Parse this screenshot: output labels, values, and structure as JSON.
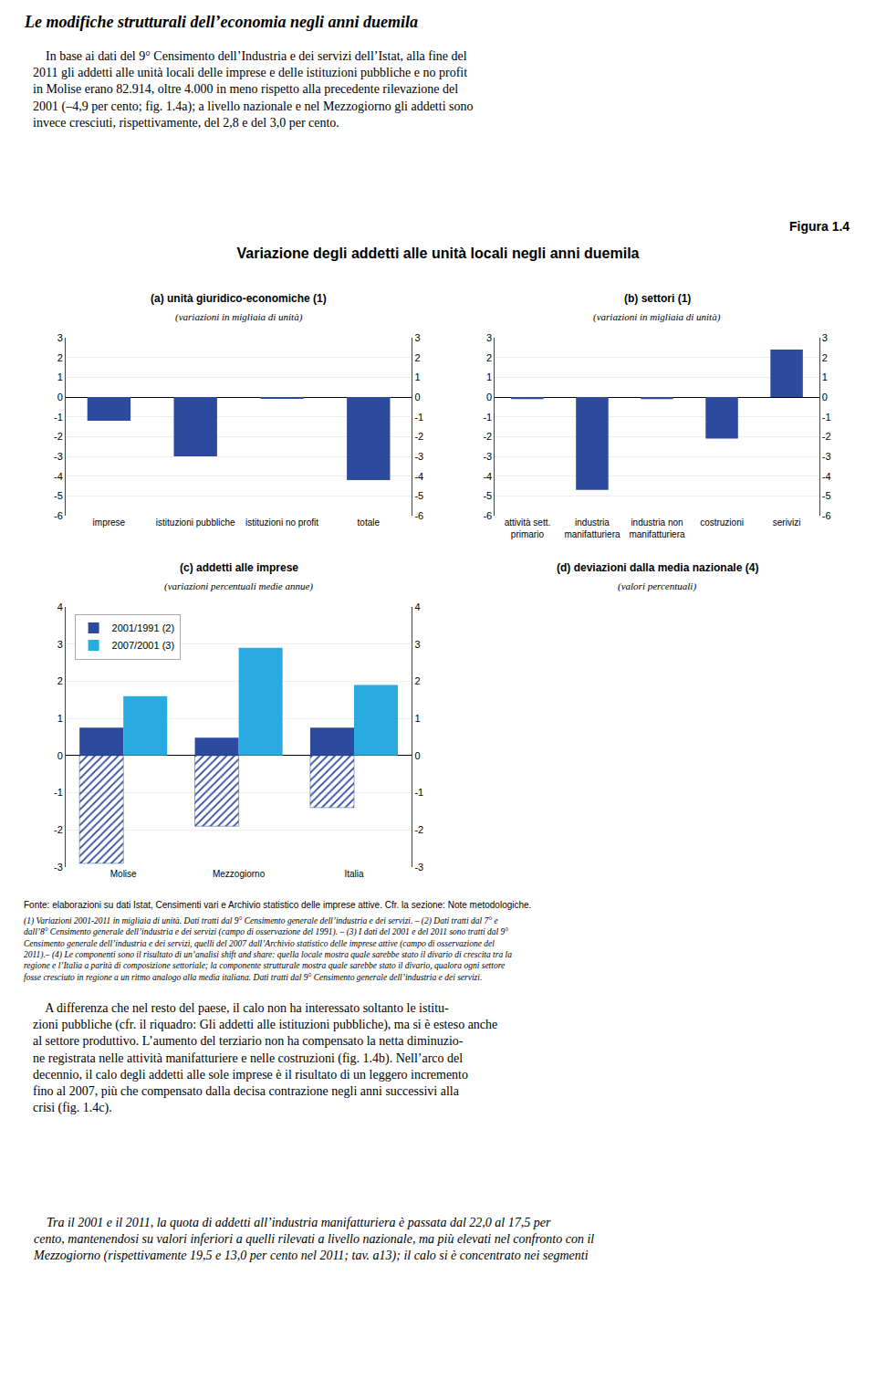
{
  "title": "Variazione degli addetti alle unità locali negli anni duemila",
  "annotations": [
    "Le modifiche strutturali dell’economia negli anni duemila",
    "    In base ai dati del 9° Censimento dell’Industria e dei servizi dell’Istat, alla fine del\n2011 gli addetti alle unità locali delle imprese e delle istituzioni pubbliche e no profit\nin Molise erano 82.914, oltre 4.000 in meno rispetto alla precedente rilevazione del\n2001 (–4,9 per cento; fig. 1.4a); a livello nazionale e nel Mezzogiorno gli addetti sono\ninvece cresciuti, rispettivamente, del 2,8 e del 3,0 per cento.",
    "Figura 1.4",
    "Fonte: elaborazioni su dati Istat, Censimenti vari e Archivio statistico delle imprese attive. Cfr. la sezione: Note metodologiche.",
    "(1) Variazioni 2001-2011 in migliaia di unità. Dati tratti dal 9° Censimento generale dell’industria e dei servizi. – (2) Dati tratti dal 7° e\ndall’8° Censimento generale dell’industria e dei servizi (campo di osservazione del 1991). – (3) I dati del 2001 e del 2011 sono tratti dal 9°\nCensimento generale dell’industria e dei servizi, quelli del 2007 dall’Archivio statistico delle imprese attive (campo di osservazione del\n2011).– (4) Le componenti sono il risultato di un’analisi shift and share: quella locale mostra quale sarebbe stato il divario di crescita tra la\nregione e l’Italia a parità di composizione settoriale; la componente strutturale mostra quale sarebbe stato il divario, qualora ogni settore\nfosse cresciuto in regione a un ritmo analogo alla media italiana. Dati tratti dal 9° Censimento generale dell’industria e dei servizi.",
    "    A differenza che nel resto del paese, il calo non ha interessato soltanto le istitu-\nzioni pubbliche (cfr. il riquadro: Gli addetti alle istituzioni pubbliche), ma si è esteso anche\nal settore produttivo. L’aumento del terziario non ha compensato la netta diminuzio-\nne registrata nelle attività manifatturiere e nelle costruzioni (fig. 1.4b). Nell’arco del\ndecennio, il calo degli addetti alle sole imprese è il risultato di un leggero incremento\nfino al 2007, più che compensato dalla decisa contrazione negli anni successivi alla\ncrisi (fig. 1.4c).",
    "    Tra il 2001 e il 2011, la quota di addetti all’industria manifatturiera è passata dal 22,0 al 17,5 per\ncento, mantenendosi su valori inferiori a quelli rilevati a livello nazionale, ma più elevati nel confronto con il\nMezzogiorno (rispettivamente 19,5 e 13,0 per cento nel 2011; tav. a13); il calo si è concentrato nei segmenti"
  ],
  "chart_data": [
    {
      "type": "bar",
      "title": "(a) unità giuridico-economiche (1)",
      "subtitle": "(variazioni in migliaia di unità)",
      "categories": [
        "imprese",
        "istituzioni pubbliche",
        "istituzioni no profit",
        "totale"
      ],
      "values": [
        -1.2,
        -3.0,
        -0.05,
        -4.2
      ],
      "color": "#2E4A9E",
      "ylim": [
        -6,
        3
      ],
      "yticks": [
        -6,
        -5,
        -4,
        -3,
        -2,
        -1,
        0,
        1,
        2,
        3
      ],
      "y2lim": [
        -6,
        3
      ],
      "y2ticks": [
        -6,
        -5,
        -4,
        -3,
        -2,
        -1,
        0,
        1,
        2,
        3
      ],
      "grid": true
    },
    {
      "type": "bar",
      "title": "(b) settori (1)",
      "subtitle": "(variazioni in migliaia di unità)",
      "categories": [
        "attività sett.\nprimario",
        "industria\nmanifatturiera",
        "industria non\nmanifatturiera",
        "costruzioni",
        "serivizi"
      ],
      "values": [
        -0.1,
        -4.7,
        -0.1,
        -2.1,
        2.4
      ],
      "color": "#2E4A9E",
      "ylim": [
        -6,
        3
      ],
      "yticks": [
        -6,
        -5,
        -4,
        -3,
        -2,
        -1,
        0,
        1,
        2,
        3
      ],
      "y2lim": [
        -6,
        3
      ],
      "y2ticks": [
        -6,
        -5,
        -4,
        -3,
        -2,
        -1,
        0,
        1,
        2,
        3
      ],
      "grid": true
    },
    {
      "type": "bar",
      "title": "(c) addetti alle imprese",
      "subtitle": "(variazioni percentuali medie annue)",
      "categories": [
        "Molise",
        "Mezzogiorno",
        "Italia"
      ],
      "series": [
        {
          "name": "2001/1991 (2)",
          "color": "#2E4A9E",
          "values": [
            0.75,
            0.48,
            0.75
          ]
        },
        {
          "name": "2007/2001 (3)",
          "color": "#29ABE2",
          "values": [
            1.6,
            2.9,
            1.9
          ]
        },
        {
          "color": "#29ABE2",
          "marker": "hatched",
          "values": [
            -2.9,
            -1.9,
            -1.4
          ]
        }
      ],
      "ylim": [
        -3,
        4
      ],
      "yticks": [
        -3,
        -2,
        -1,
        0,
        1,
        2,
        3,
        4
      ],
      "y2lim": [
        -3,
        4
      ],
      "y2ticks": [
        -3,
        -2,
        -1,
        0,
        1,
        2,
        3,
        4
      ],
      "grid": true,
      "legend": "upper left"
    },
    {
      "type": "empty",
      "title": "(d) deviazioni dalla media nazionale (4)",
      "subtitle": "(valori percentuali)",
      "tick_labels": false
    }
  ]
}
